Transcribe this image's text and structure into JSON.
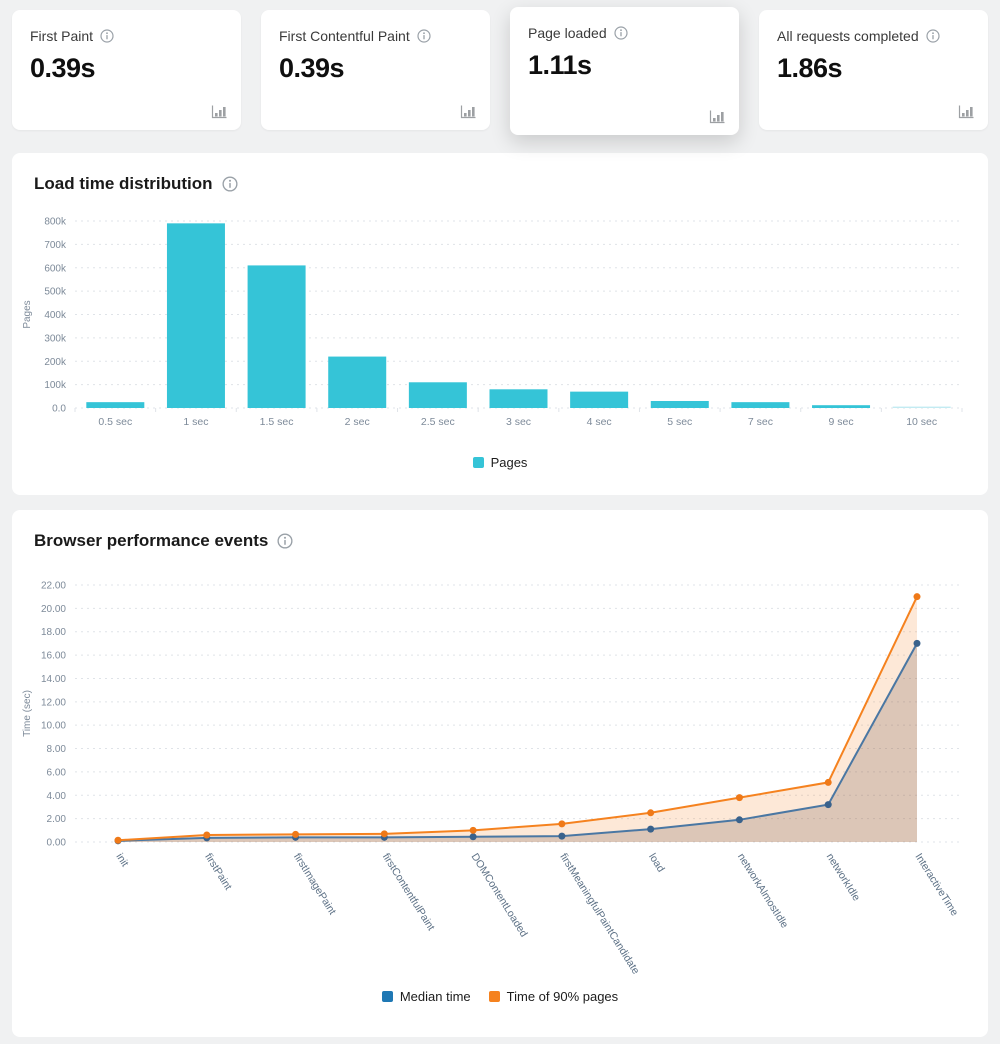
{
  "page": {
    "background": "#f0f1f2"
  },
  "cards": [
    {
      "label": "First Paint",
      "value": "0.39s",
      "active": false
    },
    {
      "label": "First Contentful Paint",
      "value": "0.39s",
      "active": false
    },
    {
      "label": "Page loaded",
      "value": "1.11s",
      "active": true
    },
    {
      "label": "All requests completed",
      "value": "1.86s",
      "active": false
    }
  ],
  "sections": {
    "load_time": {
      "title": "Load time distribution"
    },
    "events": {
      "title": "Browser performance events"
    }
  },
  "colors": {
    "bar_cyan": "#35c4d7",
    "bar_cyan_light": "#c3ebf2",
    "grid": "#dfe3e8",
    "tick_text": "#7d8a99",
    "rotated_label": "#5d7186",
    "median_line": "#4a77a3",
    "median_marker": "#3a628c",
    "median_legend": "#1f78b4",
    "p90_orange": "#f5821f"
  },
  "chart_data": [
    {
      "type": "bar",
      "title": "Load time distribution",
      "categories": [
        "0.5 sec",
        "1 sec",
        "1.5 sec",
        "2 sec",
        "2.5 sec",
        "3 sec",
        "4 sec",
        "5 sec",
        "7 sec",
        "9 sec",
        "10 sec"
      ],
      "values": [
        25000,
        790000,
        610000,
        220000,
        110000,
        80000,
        70000,
        30000,
        25000,
        12000,
        6000
      ],
      "bar_colors": [
        "#35c4d7",
        "#35c4d7",
        "#35c4d7",
        "#35c4d7",
        "#35c4d7",
        "#35c4d7",
        "#35c4d7",
        "#35c4d7",
        "#35c4d7",
        "#35c4d7",
        "#c3ebf2"
      ],
      "xlabel": "",
      "ylabel": "Pages",
      "ylim": [
        0,
        800000
      ],
      "ytick_labels": [
        "0.0",
        "100k",
        "200k",
        "300k",
        "400k",
        "500k",
        "600k",
        "700k",
        "800k"
      ],
      "grid": "horizontal-dashed",
      "legend": [
        {
          "label": "Pages",
          "color": "#35c4d7"
        }
      ],
      "legend_position": "bottom"
    },
    {
      "type": "line",
      "title": "Browser performance events",
      "x": [
        "init",
        "firstPaint",
        "firstImagePaint",
        "firstContentfulPaint",
        "DOMContentLoaded",
        "firstMeaningfulPaintCandidate",
        "load",
        "networkAlmostIdle",
        "networkIdle",
        "InteractiveTime"
      ],
      "series": [
        {
          "name": "Median time",
          "values": [
            0.1,
            0.35,
            0.4,
            0.4,
            0.45,
            0.5,
            1.1,
            1.9,
            3.2,
            17.0
          ],
          "line_color": "#4a77a3",
          "marker_color": "#3a628c",
          "legend_color": "#1f78b4",
          "fill_color": "rgba(107,79,72,0.22)"
        },
        {
          "name": "Time of 90% pages",
          "values": [
            0.15,
            0.6,
            0.65,
            0.7,
            1.0,
            1.55,
            2.5,
            3.8,
            5.1,
            21.0
          ],
          "line_color": "#f5821f",
          "marker_color": "#ef7918",
          "legend_color": "#f5821f",
          "fill_color": "rgba(245,130,31,0.18)"
        }
      ],
      "xlabel": "",
      "ylabel": "Time (sec)",
      "ylim": [
        0,
        22
      ],
      "ytick_step": 2,
      "grid": "horizontal-dashed",
      "area_fill": true,
      "legend_position": "bottom"
    }
  ]
}
